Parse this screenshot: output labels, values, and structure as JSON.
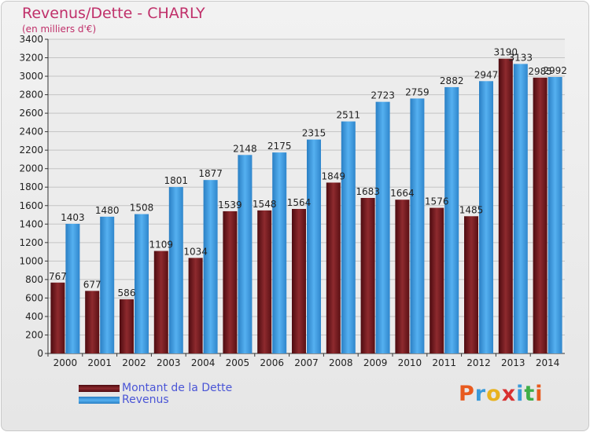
{
  "header": {
    "title": "Revenus/Dette - CHARLY",
    "subtitle": "(en milliers d'€)"
  },
  "chart_data": {
    "type": "bar",
    "title": "Revenus/Dette - CHARLY",
    "subtitle": "(en milliers d'€)",
    "xlabel": "",
    "ylabel": "",
    "ylim": [
      0,
      3400
    ],
    "ytick_step": 200,
    "grid": true,
    "categories": [
      "2000",
      "2001",
      "2002",
      "2003",
      "2004",
      "2005",
      "2006",
      "2007",
      "2008",
      "2009",
      "2010",
      "2011",
      "2012",
      "2013",
      "2014"
    ],
    "series": [
      {
        "name": "Montant de la Dette",
        "color": "#7a1a1e",
        "values": [
          767,
          677,
          586,
          1109,
          1034,
          1539,
          1548,
          1564,
          1849,
          1683,
          1664,
          1576,
          1485,
          3190,
          2985
        ],
        "labels": [
          "767",
          "677",
          "586",
          "1109",
          "1034",
          "1539",
          "1548",
          "1564",
          "1849",
          "1683",
          "1664",
          "1576",
          "1485",
          "3190",
          "2985"
        ]
      },
      {
        "name": "Revenus",
        "color": "#3d9be0",
        "values": [
          1403,
          1480,
          1508,
          1801,
          1877,
          2148,
          2175,
          2315,
          2511,
          2723,
          2759,
          2882,
          2947,
          3133,
          2992
        ],
        "labels": [
          "1403",
          "1480",
          "1508",
          "1801",
          "1877",
          "2148",
          "2175",
          "2315",
          "2511",
          "2723",
          "2759",
          "2882",
          "2947",
          "3133",
          "2992"
        ]
      }
    ],
    "legend": {
      "placement": "bottom-left",
      "items": [
        "Montant de la Dette",
        "Revenus"
      ]
    }
  },
  "logo": {
    "text": "Proxiti",
    "colors": [
      "#e85a1e",
      "#3a9ad9",
      "#e8b21e",
      "#d83030",
      "#3a9ad9",
      "#3fae49",
      "#e85a1e"
    ]
  }
}
